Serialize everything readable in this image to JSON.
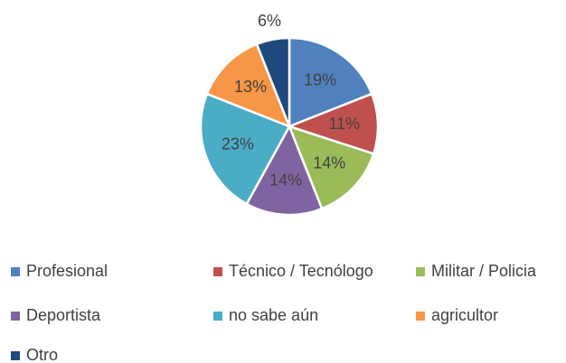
{
  "chart_data": {
    "type": "pie",
    "categories": [
      "Profesional",
      "Técnico / Tecnólogo",
      "Militar / Policia",
      "Deportista",
      "no sabe aún",
      "agricultor",
      "Otro"
    ],
    "values": [
      19,
      11,
      14,
      14,
      23,
      13,
      6
    ],
    "value_labels": [
      "19%",
      "11%",
      "14%",
      "14%",
      "23%",
      "13%",
      "6%"
    ],
    "colors": [
      "#4f81bd",
      "#c0504d",
      "#9bbb59",
      "#8064a2",
      "#4bacc6",
      "#f79646",
      "#1f497d"
    ],
    "legend": "bottom"
  }
}
